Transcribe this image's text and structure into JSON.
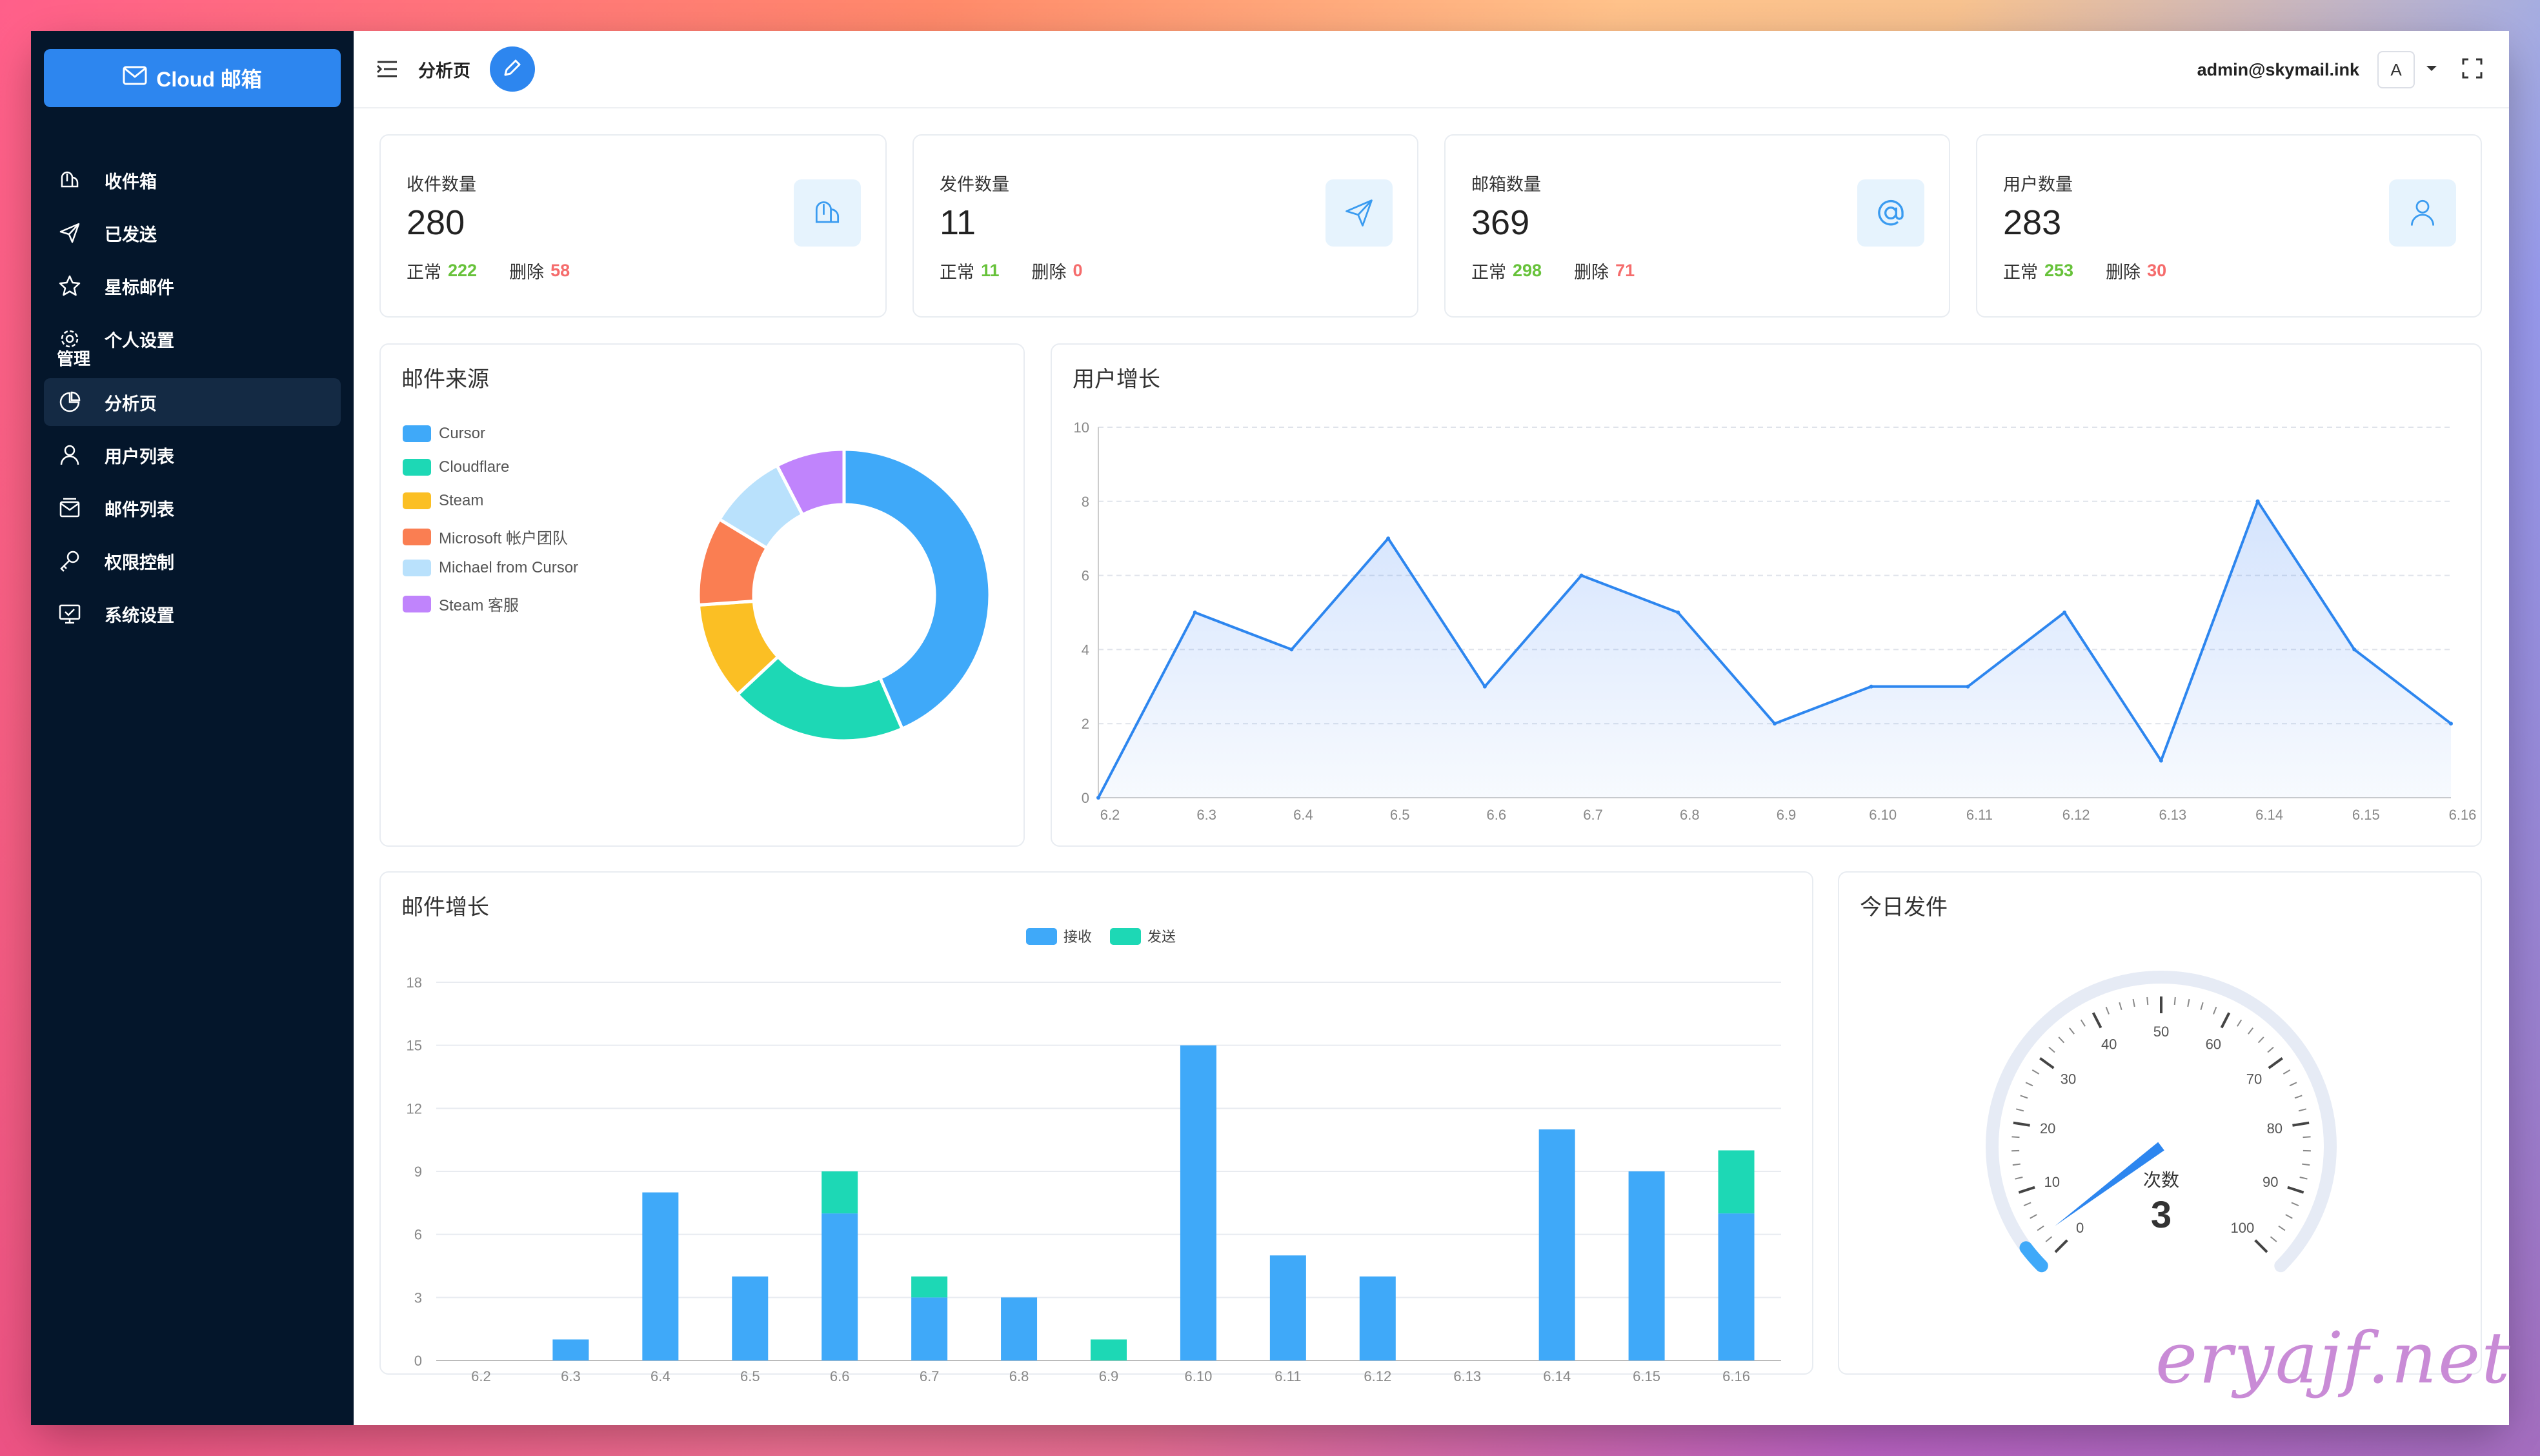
{
  "app": {
    "name": "Cloud 邮箱"
  },
  "sidebar": {
    "items": [
      {
        "label": "收件箱",
        "icon": "mailbox-icon"
      },
      {
        "label": "已发送",
        "icon": "send-icon"
      },
      {
        "label": "星标邮件",
        "icon": "star-icon"
      },
      {
        "label": "个人设置",
        "icon": "gear-icon"
      }
    ],
    "section_label": "管理",
    "admin_items": [
      {
        "label": "分析页",
        "icon": "pie-chart-icon",
        "active": true
      },
      {
        "label": "用户列表",
        "icon": "user-icon"
      },
      {
        "label": "邮件列表",
        "icon": "mail-list-icon"
      },
      {
        "label": "权限控制",
        "icon": "key-icon"
      },
      {
        "label": "系统设置",
        "icon": "monitor-settings-icon"
      }
    ]
  },
  "header": {
    "breadcrumb": "分析页",
    "user_email": "admin@skymail.ink",
    "avatar_letter": "A"
  },
  "stats": [
    {
      "title": "收件数量",
      "value": "280",
      "normal_label": "正常",
      "normal": "222",
      "deleted_label": "删除",
      "deleted": "58",
      "icon": "mailbox-icon"
    },
    {
      "title": "发件数量",
      "value": "11",
      "normal_label": "正常",
      "normal": "11",
      "deleted_label": "删除",
      "deleted": "0",
      "icon": "send-icon"
    },
    {
      "title": "邮箱数量",
      "value": "369",
      "normal_label": "正常",
      "normal": "298",
      "deleted_label": "删除",
      "deleted": "71",
      "icon": "at-icon"
    },
    {
      "title": "用户数量",
      "value": "283",
      "normal_label": "正常",
      "normal": "253",
      "deleted_label": "删除",
      "deleted": "30",
      "icon": "user-icon"
    }
  ],
  "panels": {
    "source": "邮件来源",
    "user_growth": "用户增长",
    "mail_growth": "邮件增长",
    "today_sent": "今日发件"
  },
  "chart_data": [
    {
      "type": "pie",
      "title": "邮件来源",
      "labels": [
        "Cursor",
        "Cloudflare",
        "Steam",
        "Microsoft 帐户团队",
        "Michael from Cursor",
        "Steam 客服"
      ],
      "values": [
        40,
        18,
        10,
        9,
        8,
        7
      ],
      "colors": [
        "#3fa9f9",
        "#1dd8b5",
        "#fbbf24",
        "#fa7e52",
        "#b9e1fc",
        "#c084fc"
      ],
      "legend": "left"
    },
    {
      "type": "area",
      "title": "用户增长",
      "x": [
        "6.2",
        "6.3",
        "6.4",
        "6.5",
        "6.6",
        "6.7",
        "6.8",
        "6.9",
        "6.10",
        "6.11",
        "6.12",
        "6.13",
        "6.14",
        "6.15",
        "6.16"
      ],
      "values": [
        0,
        5,
        4,
        7,
        3,
        6,
        5,
        2,
        3,
        3,
        5,
        1,
        8,
        4,
        2
      ],
      "ylim": [
        0,
        10
      ],
      "yticks": [
        0,
        2,
        4,
        6,
        8,
        10
      ],
      "grid": true
    },
    {
      "type": "bar",
      "title": "邮件增长",
      "stacked": true,
      "categories": [
        "6.2",
        "6.3",
        "6.4",
        "6.5",
        "6.6",
        "6.7",
        "6.8",
        "6.9",
        "6.10",
        "6.11",
        "6.12",
        "6.13",
        "6.14",
        "6.15",
        "6.16"
      ],
      "series": [
        {
          "name": "接收",
          "color": "#3fa9f9",
          "values": [
            0,
            1,
            8,
            4,
            7,
            3,
            3,
            0,
            15,
            5,
            4,
            0,
            11,
            9,
            7
          ]
        },
        {
          "name": "发送",
          "color": "#1dd8b5",
          "values": [
            0,
            0,
            0,
            0,
            2,
            1,
            0,
            1,
            0,
            0,
            0,
            0,
            0,
            0,
            3
          ]
        }
      ],
      "ylim": [
        0,
        18
      ],
      "yticks": [
        0,
        3,
        6,
        9,
        12,
        15,
        18
      ],
      "legend": "top"
    },
    {
      "type": "gauge",
      "title": "今日发件",
      "value": 3,
      "label": "次数",
      "min": 0,
      "max": 100,
      "ticks": [
        0,
        10,
        20,
        30,
        40,
        50,
        60,
        70,
        80,
        90,
        100
      ]
    }
  ],
  "watermark": "eryajf.net"
}
